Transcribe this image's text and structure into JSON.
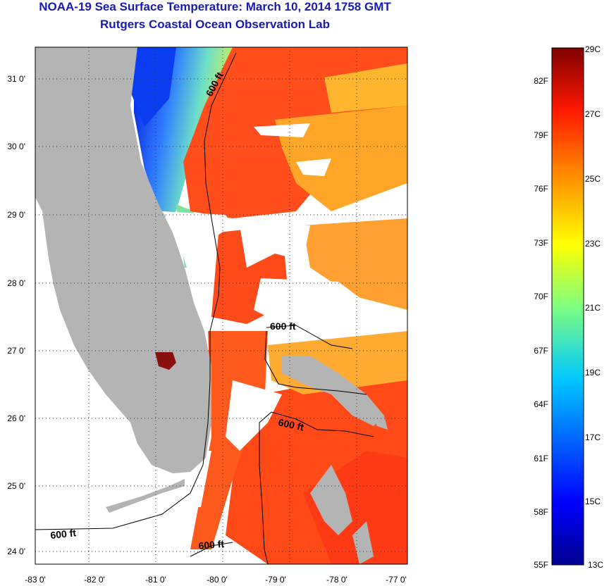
{
  "header": {
    "title": "NOAA-19 Sea Surface Temperature:  March 10, 2014 1758 GMT",
    "subtitle": "Rutgers Coastal Ocean Observation Lab"
  },
  "map": {
    "lon_labels": [
      "-83 0'",
      "-82 0'",
      "-81 0'",
      "-80 0'",
      "-79 0'",
      "-78 0'",
      "-77 0'"
    ],
    "lat_labels": [
      "31 0'",
      "30 0'",
      "29 0'",
      "28 0'",
      "27 0'",
      "26 0'",
      "25 0'",
      "24 0'"
    ],
    "depth_contour_label": "600 ft",
    "colors": {
      "land": "#b4b4b4",
      "cloud": "#ffffff",
      "warm": "#ff3c1e",
      "cold": "#0032ff"
    }
  },
  "colorbar": {
    "celsius": [
      "29C",
      "27C",
      "25C",
      "23C",
      "21C",
      "19C",
      "17C",
      "15C",
      "13C"
    ],
    "fahrenheit": [
      "82F",
      "79F",
      "76F",
      "73F",
      "70F",
      "67F",
      "64F",
      "61F",
      "58F",
      "55F"
    ],
    "range_c": [
      13,
      29
    ]
  }
}
